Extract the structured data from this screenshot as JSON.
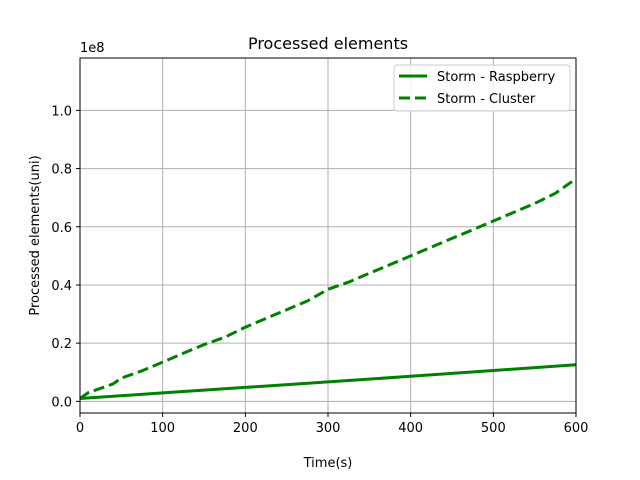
{
  "chart_data": {
    "type": "line",
    "title": "Processed elements",
    "xlabel": "Time(s)",
    "ylabel": "Processed elements(uni)",
    "y_offset_label": "1e8",
    "xlim": [
      0,
      600
    ],
    "ylim": [
      -0.04,
      1.18
    ],
    "x_ticks": [
      0,
      100,
      200,
      300,
      400,
      500,
      600
    ],
    "x_tick_labels": [
      "0",
      "100",
      "200",
      "300",
      "400",
      "500",
      "600"
    ],
    "y_ticks": [
      0.0,
      0.2,
      0.4,
      0.6,
      0.8,
      1.0
    ],
    "y_tick_labels": [
      "0.0",
      "0.2",
      "0.4",
      "0.6",
      "0.8",
      "1.0"
    ],
    "grid": true,
    "legend_position": "top-right",
    "series": [
      {
        "name": "Storm - Raspberry",
        "style": "solid",
        "color": "#008000",
        "x": [
          0,
          100,
          200,
          300,
          400,
          500,
          600
        ],
        "y": [
          0.01,
          0.029,
          0.048,
          0.067,
          0.086,
          0.106,
          0.126
        ]
      },
      {
        "name": "Storm - Cluster",
        "style": "dashed",
        "color": "#008000",
        "x": [
          0,
          10,
          25,
          40,
          50,
          75,
          100,
          125,
          150,
          175,
          200,
          225,
          250,
          275,
          300,
          325,
          350,
          375,
          400,
          425,
          450,
          475,
          500,
          525,
          550,
          575,
          600
        ],
        "y": [
          0.01,
          0.03,
          0.045,
          0.06,
          0.08,
          0.105,
          0.135,
          0.165,
          0.195,
          0.22,
          0.255,
          0.285,
          0.315,
          0.345,
          0.385,
          0.41,
          0.44,
          0.47,
          0.5,
          0.53,
          0.56,
          0.59,
          0.62,
          0.65,
          0.68,
          0.715,
          0.765
        ]
      }
    ]
  }
}
